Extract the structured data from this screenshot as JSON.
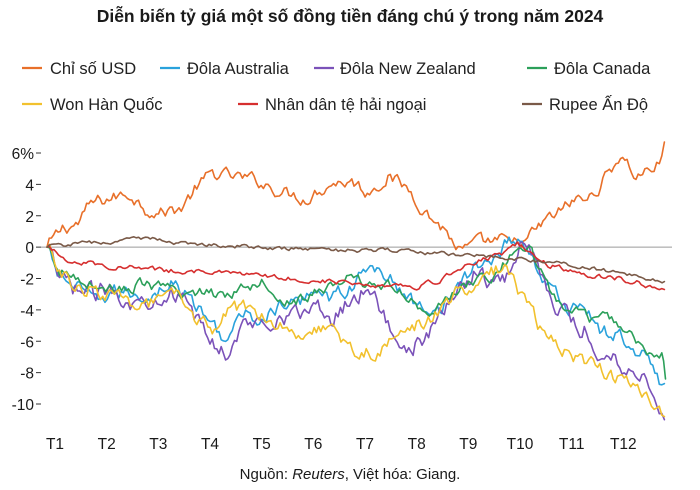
{
  "chart_data": {
    "type": "line",
    "title": "Diễn biến tỷ giá một số đồng tiền đáng chú ý trong năm 2024",
    "source": {
      "prefix": "Nguồn: ",
      "name": "Reuters",
      "suffix": ", Việt hóa: Giang."
    },
    "xlabel": "",
    "ylabel": "",
    "xlim": [
      0,
      12
    ],
    "ylim": [
      -11,
      7
    ],
    "x_ticks": [
      {
        "label": "T1",
        "x": 0
      },
      {
        "label": "T2",
        "x": 1
      },
      {
        "label": "T3",
        "x": 2
      },
      {
        "label": "T4",
        "x": 3
      },
      {
        "label": "T5",
        "x": 4
      },
      {
        "label": "T6",
        "x": 5
      },
      {
        "label": "T7",
        "x": 6
      },
      {
        "label": "T8",
        "x": 7
      },
      {
        "label": "T9",
        "x": 8
      },
      {
        "label": "T10",
        "x": 9
      },
      {
        "label": "T11",
        "x": 10
      },
      {
        "label": "T12",
        "x": 11
      }
    ],
    "y_ticks": [
      {
        "label": "6%",
        "y": 6
      },
      {
        "label": "4",
        "y": 4
      },
      {
        "label": "2",
        "y": 2
      },
      {
        "label": "0",
        "y": 0
      },
      {
        "label": "-2",
        "y": -2
      },
      {
        "label": "-4",
        "y": -4
      },
      {
        "label": "-6",
        "y": -6
      },
      {
        "label": "-8",
        "y": -8
      },
      {
        "label": "-10",
        "y": -10
      }
    ],
    "legend_position": "top",
    "series": [
      {
        "name": "Chỉ số USD",
        "color": "#e8702a",
        "points": [
          [
            0,
            0
          ],
          [
            0.3,
            1.2
          ],
          [
            0.6,
            1.5
          ],
          [
            0.85,
            2.8
          ],
          [
            1.2,
            3.1
          ],
          [
            1.6,
            3.4
          ],
          [
            1.9,
            2.5
          ],
          [
            2.2,
            2.2
          ],
          [
            2.6,
            2.5
          ],
          [
            2.9,
            3.8
          ],
          [
            3.2,
            4.7
          ],
          [
            3.6,
            4.5
          ],
          [
            4.1,
            4.2
          ],
          [
            4.5,
            3.6
          ],
          [
            5.0,
            3.1
          ],
          [
            5.5,
            4.1
          ],
          [
            5.9,
            4.2
          ],
          [
            6.2,
            3.5
          ],
          [
            6.6,
            4.5
          ],
          [
            7.0,
            3.7
          ],
          [
            7.4,
            2.0
          ],
          [
            7.7,
            1.1
          ],
          [
            8.0,
            -0.3
          ],
          [
            8.4,
            0.3
          ],
          [
            8.8,
            0.4
          ],
          [
            9.0,
            0.1
          ],
          [
            9.3,
            0.5
          ],
          [
            9.6,
            1.5
          ],
          [
            9.9,
            2.2
          ],
          [
            10.2,
            3.0
          ],
          [
            10.5,
            3.1
          ],
          [
            10.8,
            4.4
          ],
          [
            11.1,
            5.9
          ],
          [
            11.4,
            4.5
          ],
          [
            11.7,
            5.0
          ],
          [
            11.85,
            5.3
          ],
          [
            11.95,
            6.7
          ]
        ],
        "noise": 0.4
      },
      {
        "name": "Đôla Australia",
        "color": "#2aa2dc",
        "points": [
          [
            0,
            0
          ],
          [
            0.2,
            -1.6
          ],
          [
            0.5,
            -2.4
          ],
          [
            0.9,
            -3.5
          ],
          [
            1.3,
            -2.9
          ],
          [
            1.7,
            -3.0
          ],
          [
            2.0,
            -3.1
          ],
          [
            2.4,
            -2.2
          ],
          [
            2.8,
            -3.4
          ],
          [
            3.2,
            -5.0
          ],
          [
            3.5,
            -5.9
          ],
          [
            3.8,
            -4.3
          ],
          [
            4.2,
            -4.6
          ],
          [
            4.5,
            -3.8
          ],
          [
            4.9,
            -3.6
          ],
          [
            5.2,
            -2.4
          ],
          [
            5.5,
            -3.2
          ],
          [
            5.9,
            -2.5
          ],
          [
            6.3,
            -1.2
          ],
          [
            6.6,
            -1.8
          ],
          [
            7.0,
            -3.4
          ],
          [
            7.3,
            -3.8
          ],
          [
            7.6,
            -3.8
          ],
          [
            8.0,
            -2.5
          ],
          [
            8.3,
            -1.2
          ],
          [
            8.6,
            -0.8
          ],
          [
            8.9,
            0.3
          ],
          [
            9.2,
            0.6
          ],
          [
            9.5,
            -1.4
          ],
          [
            9.8,
            -3.0
          ],
          [
            10.1,
            -3.9
          ],
          [
            10.4,
            -3.6
          ],
          [
            10.7,
            -5.5
          ],
          [
            11.0,
            -5.5
          ],
          [
            11.3,
            -6.3
          ],
          [
            11.6,
            -6.8
          ],
          [
            11.85,
            -8.4
          ],
          [
            11.95,
            -8.7
          ]
        ],
        "noise": 0.45
      },
      {
        "name": "Đôla New Zealand",
        "color": "#7b52b9",
        "points": [
          [
            0,
            0
          ],
          [
            0.2,
            -1.9
          ],
          [
            0.5,
            -2.6
          ],
          [
            0.9,
            -3.0
          ],
          [
            1.3,
            -2.6
          ],
          [
            1.7,
            -3.7
          ],
          [
            2.0,
            -3.2
          ],
          [
            2.4,
            -2.7
          ],
          [
            2.8,
            -4.2
          ],
          [
            3.2,
            -6.1
          ],
          [
            3.5,
            -6.7
          ],
          [
            3.8,
            -5.1
          ],
          [
            4.2,
            -4.7
          ],
          [
            4.5,
            -4.3
          ],
          [
            4.9,
            -4.3
          ],
          [
            5.2,
            -3.7
          ],
          [
            5.5,
            -4.7
          ],
          [
            5.9,
            -3.1
          ],
          [
            6.3,
            -2.5
          ],
          [
            6.6,
            -5.1
          ],
          [
            7.0,
            -6.4
          ],
          [
            7.3,
            -6.0
          ],
          [
            7.6,
            -4.5
          ],
          [
            8.0,
            -2.4
          ],
          [
            8.3,
            -1.5
          ],
          [
            8.6,
            -2.2
          ],
          [
            8.9,
            -1.9
          ],
          [
            9.2,
            0.6
          ],
          [
            9.5,
            -1.0
          ],
          [
            9.8,
            -3.3
          ],
          [
            10.1,
            -4.6
          ],
          [
            10.4,
            -5.2
          ],
          [
            10.7,
            -6.9
          ],
          [
            11.0,
            -7.0
          ],
          [
            11.3,
            -7.9
          ],
          [
            11.6,
            -8.3
          ],
          [
            11.8,
            -9.5
          ],
          [
            11.95,
            -11.0
          ]
        ],
        "noise": 0.55
      },
      {
        "name": "Đôla Canada",
        "color": "#2ca05a",
        "points": [
          [
            0,
            0
          ],
          [
            0.2,
            -1.6
          ],
          [
            0.6,
            -1.9
          ],
          [
            1.0,
            -2.5
          ],
          [
            1.4,
            -2.8
          ],
          [
            1.8,
            -2.4
          ],
          [
            2.2,
            -2.6
          ],
          [
            2.6,
            -3.1
          ],
          [
            3.0,
            -2.8
          ],
          [
            3.4,
            -3.1
          ],
          [
            3.8,
            -2.5
          ],
          [
            4.2,
            -2.1
          ],
          [
            4.6,
            -3.4
          ],
          [
            5.0,
            -3.3
          ],
          [
            5.4,
            -2.6
          ],
          [
            5.8,
            -2.0
          ],
          [
            6.2,
            -2.4
          ],
          [
            6.6,
            -2.3
          ],
          [
            7.0,
            -3.5
          ],
          [
            7.4,
            -3.9
          ],
          [
            7.8,
            -3.4
          ],
          [
            8.2,
            -2.1
          ],
          [
            8.6,
            -2.1
          ],
          [
            9.0,
            -0.4
          ],
          [
            9.3,
            0.3
          ],
          [
            9.6,
            -2.0
          ],
          [
            9.9,
            -3.5
          ],
          [
            10.2,
            -4.0
          ],
          [
            10.5,
            -4.7
          ],
          [
            10.8,
            -4.4
          ],
          [
            11.1,
            -5.0
          ],
          [
            11.4,
            -5.8
          ],
          [
            11.7,
            -6.9
          ],
          [
            11.9,
            -7.0
          ],
          [
            11.97,
            -8.4
          ]
        ],
        "noise": 0.35
      },
      {
        "name": "Won Hàn Quốc",
        "color": "#f2c12e",
        "points": [
          [
            0,
            0
          ],
          [
            0.2,
            -1.1
          ],
          [
            0.5,
            -2.7
          ],
          [
            0.9,
            -2.6
          ],
          [
            1.3,
            -3.3
          ],
          [
            1.7,
            -3.5
          ],
          [
            2.1,
            -3.6
          ],
          [
            2.5,
            -3.2
          ],
          [
            2.9,
            -4.6
          ],
          [
            3.2,
            -5.3
          ],
          [
            3.5,
            -4.2
          ],
          [
            3.8,
            -3.9
          ],
          [
            4.2,
            -4.2
          ],
          [
            4.6,
            -5.0
          ],
          [
            5.0,
            -5.5
          ],
          [
            5.3,
            -5.0
          ],
          [
            5.6,
            -5.6
          ],
          [
            6.0,
            -6.8
          ],
          [
            6.4,
            -6.6
          ],
          [
            6.8,
            -5.8
          ],
          [
            7.2,
            -4.8
          ],
          [
            7.6,
            -4.2
          ],
          [
            8.0,
            -2.7
          ],
          [
            8.3,
            -2.8
          ],
          [
            8.6,
            -1.5
          ],
          [
            8.9,
            -1.3
          ],
          [
            9.2,
            -3.1
          ],
          [
            9.5,
            -4.9
          ],
          [
            9.8,
            -5.9
          ],
          [
            10.1,
            -6.7
          ],
          [
            10.4,
            -7.3
          ],
          [
            10.7,
            -7.7
          ],
          [
            11.0,
            -8.3
          ],
          [
            11.3,
            -8.8
          ],
          [
            11.6,
            -9.4
          ],
          [
            11.8,
            -10.2
          ],
          [
            11.95,
            -10.8
          ]
        ],
        "noise": 0.45
      },
      {
        "name": "Nhân dân tệ hải ngoại",
        "color": "#d62f2f",
        "points": [
          [
            0,
            0
          ],
          [
            0.4,
            -0.8
          ],
          [
            0.8,
            -1.0
          ],
          [
            1.2,
            -1.2
          ],
          [
            1.6,
            -1.3
          ],
          [
            2.0,
            -1.4
          ],
          [
            2.4,
            -1.5
          ],
          [
            2.8,
            -1.5
          ],
          [
            3.2,
            -1.6
          ],
          [
            3.6,
            -1.7
          ],
          [
            4.0,
            -1.8
          ],
          [
            4.4,
            -1.9
          ],
          [
            4.8,
            -2.0
          ],
          [
            5.2,
            -2.1
          ],
          [
            5.6,
            -2.2
          ],
          [
            6.0,
            -2.3
          ],
          [
            6.4,
            -2.4
          ],
          [
            6.8,
            -2.4
          ],
          [
            7.2,
            -2.5
          ],
          [
            7.6,
            -2.1
          ],
          [
            8.0,
            -1.3
          ],
          [
            8.4,
            -0.8
          ],
          [
            8.8,
            -0.5
          ],
          [
            9.1,
            0.2
          ],
          [
            9.4,
            -0.5
          ],
          [
            9.7,
            -1.1
          ],
          [
            10.0,
            -1.4
          ],
          [
            10.3,
            -1.7
          ],
          [
            10.6,
            -1.8
          ],
          [
            10.9,
            -1.9
          ],
          [
            11.2,
            -2.1
          ],
          [
            11.5,
            -2.3
          ],
          [
            11.8,
            -2.6
          ],
          [
            11.95,
            -2.7
          ]
        ],
        "noise": 0.15
      },
      {
        "name": "Rupee Ấn Độ",
        "color": "#7a5a48",
        "points": [
          [
            0,
            0
          ],
          [
            0.5,
            0.2
          ],
          [
            1.0,
            0.3
          ],
          [
            1.5,
            0.4
          ],
          [
            2.0,
            0.6
          ],
          [
            2.5,
            0.3
          ],
          [
            3.0,
            0.2
          ],
          [
            3.5,
            0.1
          ],
          [
            4.0,
            0.0
          ],
          [
            4.5,
            -0.1
          ],
          [
            5.0,
            -0.1
          ],
          [
            5.5,
            -0.2
          ],
          [
            6.0,
            -0.2
          ],
          [
            6.5,
            -0.2
          ],
          [
            7.0,
            -0.3
          ],
          [
            7.5,
            -0.4
          ],
          [
            8.0,
            -0.5
          ],
          [
            8.5,
            -0.6
          ],
          [
            9.0,
            -0.7
          ],
          [
            9.5,
            -0.9
          ],
          [
            10.0,
            -1.1
          ],
          [
            10.5,
            -1.3
          ],
          [
            11.0,
            -1.6
          ],
          [
            11.5,
            -1.9
          ],
          [
            11.95,
            -2.2
          ]
        ],
        "noise": 0.12
      }
    ]
  }
}
